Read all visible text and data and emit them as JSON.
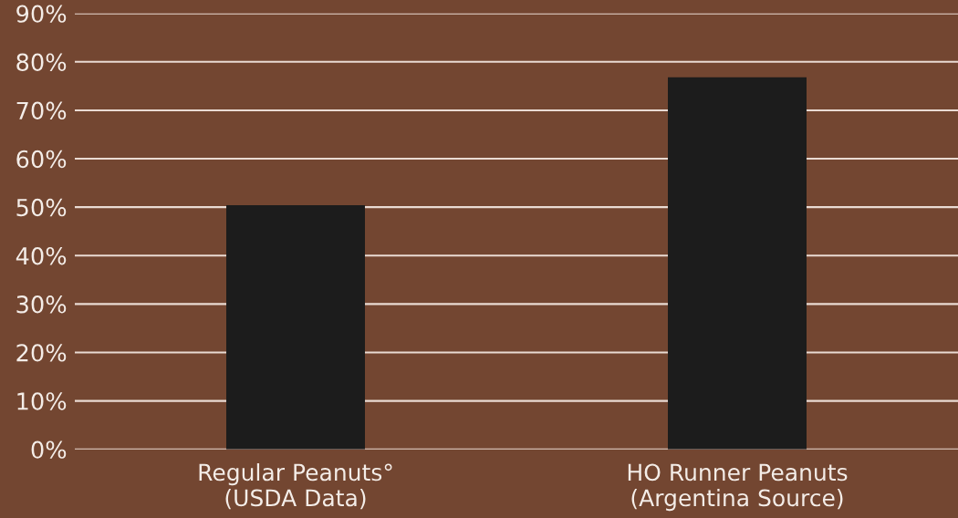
{
  "chart_data": {
    "type": "bar",
    "categories": [
      "Regular Peanuts°\n(USDA Data)",
      "HO Runner Peanuts\n(Argentina Source)"
    ],
    "values": [
      50.4,
      76.8
    ],
    "color": "#1c1c1c",
    "ylim": [
      0,
      90
    ],
    "yticks": [
      {
        "value": 0,
        "label": "0%"
      },
      {
        "value": 10,
        "label": "10%"
      },
      {
        "value": 20,
        "label": "20%"
      },
      {
        "value": 30,
        "label": "30%"
      },
      {
        "value": 40,
        "label": "40%"
      },
      {
        "value": 50,
        "label": "50%"
      },
      {
        "value": 60,
        "label": "60%"
      },
      {
        "value": 70,
        "label": "70%"
      },
      {
        "value": 80,
        "label": "80%"
      },
      {
        "value": 90,
        "label": "90%"
      }
    ],
    "grid": "y"
  }
}
